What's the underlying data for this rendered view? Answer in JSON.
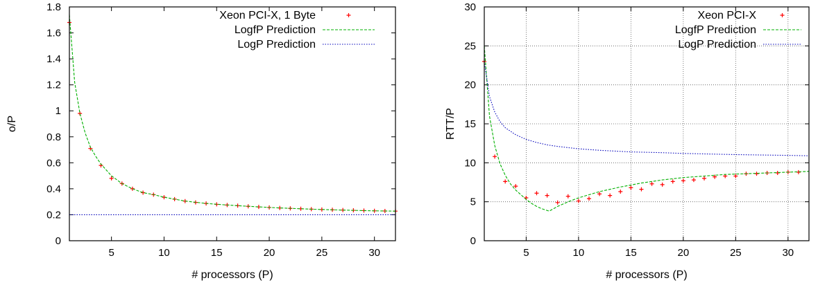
{
  "chart_data": [
    {
      "type": "line",
      "xlabel": "# processors (P)",
      "ylabel": "o/P",
      "xlim": [
        1,
        32
      ],
      "ylim": [
        0,
        1.8
      ],
      "xticks": [
        5,
        10,
        15,
        20,
        25,
        30
      ],
      "yticks": [
        0,
        0.2,
        0.4,
        0.6,
        0.8,
        1,
        1.2,
        1.4,
        1.6,
        1.8
      ],
      "grid": false,
      "legend_position": "top-right",
      "colors": {
        "points": "#ff0000",
        "logfp": "#00b000",
        "logp": "#0000bb"
      },
      "series": [
        {
          "name": "Xeon PCI-X, 1 Byte",
          "style": "points",
          "x": [
            1,
            2,
            3,
            4,
            5,
            6,
            7,
            8,
            9,
            10,
            11,
            12,
            13,
            14,
            15,
            16,
            17,
            18,
            19,
            20,
            21,
            22,
            23,
            24,
            25,
            26,
            27,
            28,
            29,
            30,
            31,
            32
          ],
          "y": [
            1.68,
            0.98,
            0.71,
            0.58,
            0.48,
            0.44,
            0.4,
            0.37,
            0.355,
            0.335,
            0.32,
            0.305,
            0.295,
            0.287,
            0.28,
            0.275,
            0.27,
            0.265,
            0.26,
            0.256,
            0.252,
            0.249,
            0.246,
            0.243,
            0.24,
            0.238,
            0.236,
            0.234,
            0.232,
            0.23,
            0.229,
            0.228
          ]
        },
        {
          "name": "LogfP Prediction",
          "style": "dashed",
          "x": [
            1,
            1.5,
            2,
            2.5,
            3,
            3.5,
            4,
            5,
            6,
            7,
            8,
            9,
            10,
            12,
            14,
            16,
            18,
            20,
            22,
            24,
            26,
            28,
            30,
            32
          ],
          "y": [
            1.74,
            1.22,
            0.98,
            0.83,
            0.72,
            0.65,
            0.59,
            0.5,
            0.44,
            0.4,
            0.37,
            0.355,
            0.335,
            0.305,
            0.287,
            0.275,
            0.265,
            0.256,
            0.249,
            0.243,
            0.238,
            0.234,
            0.23,
            0.228
          ]
        },
        {
          "name": "LogP Prediction",
          "style": "dotted",
          "x": [
            1,
            32
          ],
          "y": [
            0.2,
            0.2
          ]
        }
      ]
    },
    {
      "type": "line",
      "xlabel": "# processors (P)",
      "ylabel": "RTT/P",
      "xlim": [
        1,
        32
      ],
      "ylim": [
        0,
        30
      ],
      "xticks": [
        5,
        10,
        15,
        20,
        25,
        30
      ],
      "yticks": [
        0,
        5,
        10,
        15,
        20,
        25,
        30
      ],
      "grid": true,
      "legend_position": "top-right",
      "colors": {
        "points": "#ff0000",
        "logfp": "#00b000",
        "logp": "#0000bb"
      },
      "series": [
        {
          "name": "Xeon PCI-X",
          "style": "points",
          "x": [
            1,
            2,
            3,
            4,
            5,
            6,
            7,
            8,
            9,
            10,
            11,
            12,
            13,
            14,
            15,
            16,
            17,
            18,
            19,
            20,
            21,
            22,
            23,
            24,
            25,
            26,
            27,
            28,
            29,
            30,
            31
          ],
          "y": [
            23.0,
            10.8,
            7.6,
            7.0,
            5.5,
            6.1,
            5.8,
            4.9,
            5.7,
            5.1,
            5.4,
            6.0,
            5.8,
            6.3,
            6.8,
            6.6,
            7.3,
            7.2,
            7.6,
            7.7,
            7.8,
            8.0,
            8.2,
            8.3,
            8.3,
            8.6,
            8.6,
            8.7,
            8.7,
            8.8,
            8.8
          ]
        },
        {
          "name": "LogfP Prediction",
          "style": "dashed",
          "x": [
            1,
            1.5,
            2,
            2.5,
            3,
            3.5,
            4,
            4.5,
            5,
            5.5,
            6,
            6.5,
            7.2,
            8,
            9,
            10,
            11,
            12,
            14,
            16,
            18,
            20,
            22,
            24,
            26,
            28,
            30,
            32
          ],
          "y": [
            25.0,
            16.0,
            12.2,
            9.9,
            8.4,
            7.3,
            6.5,
            5.9,
            5.3,
            4.8,
            4.4,
            4.1,
            3.8,
            4.4,
            5.0,
            5.5,
            5.9,
            6.3,
            6.9,
            7.4,
            7.8,
            8.1,
            8.3,
            8.5,
            8.6,
            8.7,
            8.8,
            8.9
          ]
        },
        {
          "name": "LogP Prediction",
          "style": "dotted",
          "x": [
            1,
            1.5,
            2,
            2.5,
            3,
            4,
            5,
            6,
            7,
            8,
            10,
            12,
            15,
            18,
            20,
            25,
            30,
            32
          ],
          "y": [
            23.0,
            18.5,
            16.5,
            15.3,
            14.5,
            13.6,
            13.0,
            12.6,
            12.3,
            12.1,
            11.8,
            11.6,
            11.4,
            11.3,
            11.2,
            11.05,
            10.95,
            10.9
          ]
        }
      ]
    }
  ]
}
